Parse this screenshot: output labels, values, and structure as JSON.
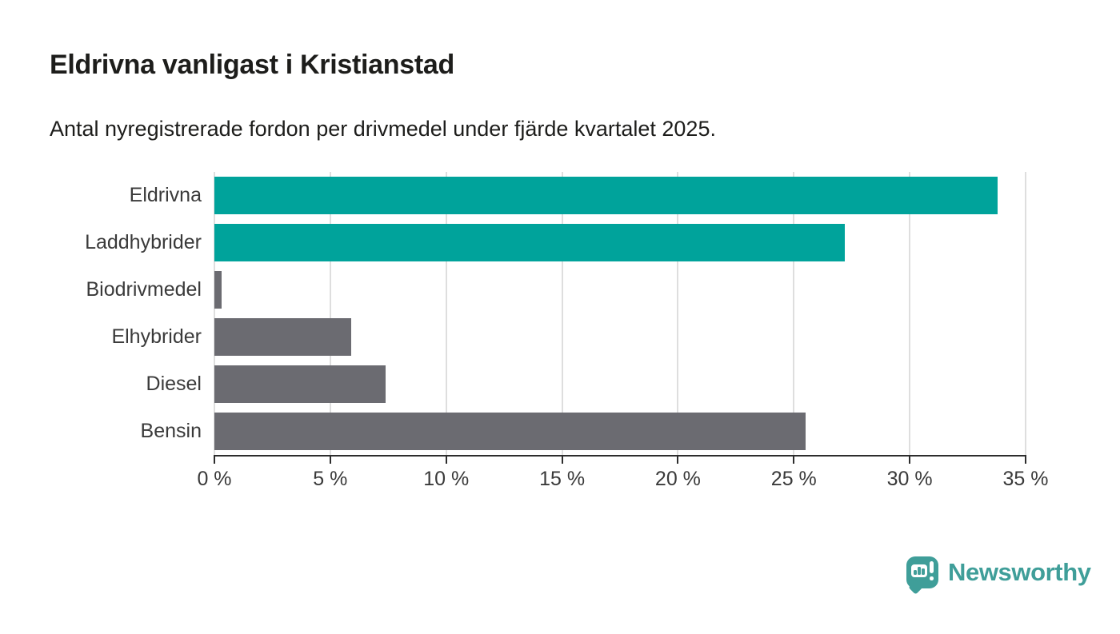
{
  "header": {
    "title": "Eldrivna vanligast i Kristianstad",
    "subtitle": "Antal nyregistrerade fordon per drivmedel under fjärde kvartalet 2025."
  },
  "chart_data": {
    "type": "bar",
    "orientation": "horizontal",
    "title": "Eldrivna vanligast i Kristianstad",
    "subtitle": "Antal nyregistrerade fordon per drivmedel under fjärde kvartalet 2025.",
    "categories": [
      "Eldrivna",
      "Laddhybrider",
      "Biodrivmedel",
      "Elhybrider",
      "Diesel",
      "Bensin"
    ],
    "values": [
      33.8,
      27.2,
      0.3,
      5.9,
      7.4,
      25.5
    ],
    "value_unit": "%",
    "bar_colors": [
      "#00a39b",
      "#00a39b",
      "#6b6b71",
      "#6b6b71",
      "#6b6b71",
      "#6b6b71"
    ],
    "xlim": [
      0,
      35
    ],
    "x_ticks": [
      0,
      5,
      10,
      15,
      20,
      25,
      30,
      35
    ],
    "x_tick_labels": [
      "0 %",
      "5 %",
      "10 %",
      "15 %",
      "20 %",
      "25 %",
      "30 %",
      "35 %"
    ],
    "grid": "vertical",
    "legend": "none"
  },
  "colors": {
    "accent_teal": "#00a39b",
    "bar_gray": "#6b6b71",
    "gridline": "#dedede",
    "axis": "#2d2d2d",
    "heading_text": "#1d1d1b",
    "label_text": "#3a3a3a",
    "logo_teal": "#3f9e99",
    "background": "#ffffff"
  },
  "branding": {
    "logo_text": "Newsworthy",
    "logo_icon": "speech-bubble-with-bar-chart-and-exclamation"
  }
}
